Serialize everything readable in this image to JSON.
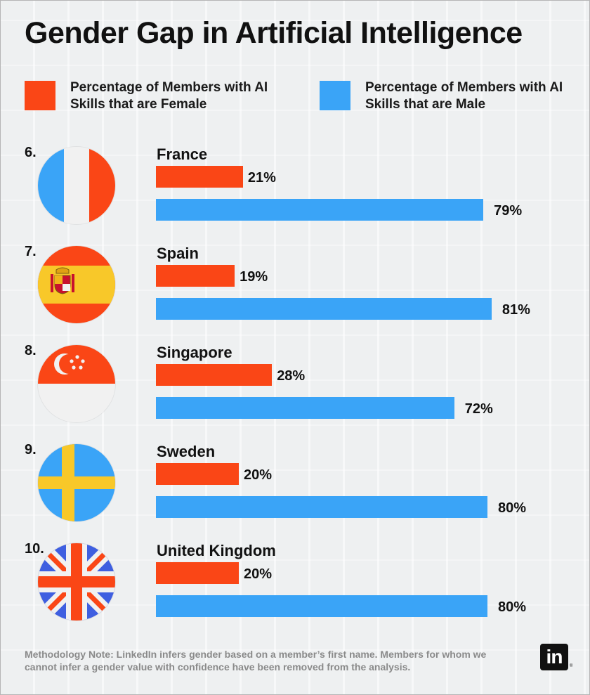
{
  "title": "Gender Gap in Artificial Intelligence",
  "colors": {
    "female": "#fa4616",
    "male": "#3aa4f7"
  },
  "legend": {
    "female": "Percentage of Members with AI Skills that are Female",
    "male": "Percentage of Members with AI Skills that are Male"
  },
  "chart_data": {
    "type": "bar",
    "orientation": "horizontal",
    "title": "Gender Gap in Artificial Intelligence",
    "categories": [
      "France",
      "Spain",
      "Singapore",
      "Sweden",
      "United Kingdom"
    ],
    "ranks": [
      "6.",
      "7.",
      "8.",
      "9.",
      "10."
    ],
    "series": [
      {
        "name": "Percentage of Members with AI Skills that are Female",
        "values": [
          21,
          19,
          28,
          20,
          20
        ],
        "labels": [
          "21%",
          "19%",
          "28%",
          "20%",
          "20%"
        ]
      },
      {
        "name": "Percentage of Members with AI Skills that are Male",
        "values": [
          79,
          81,
          72,
          80,
          80
        ],
        "labels": [
          "79%",
          "81%",
          "72%",
          "80%",
          "80%"
        ]
      }
    ],
    "xlim": [
      0,
      100
    ],
    "grid": false,
    "legend": "top"
  },
  "flags": [
    "france-flag-icon",
    "spain-flag-icon",
    "singapore-flag-icon",
    "sweden-flag-icon",
    "uk-flag-icon"
  ],
  "note": "Methodology Note: LinkedIn infers gender based on a member’s first name. Members for whom we cannot infer a gender value with confidence have been removed from the analysis.",
  "logo": "in"
}
